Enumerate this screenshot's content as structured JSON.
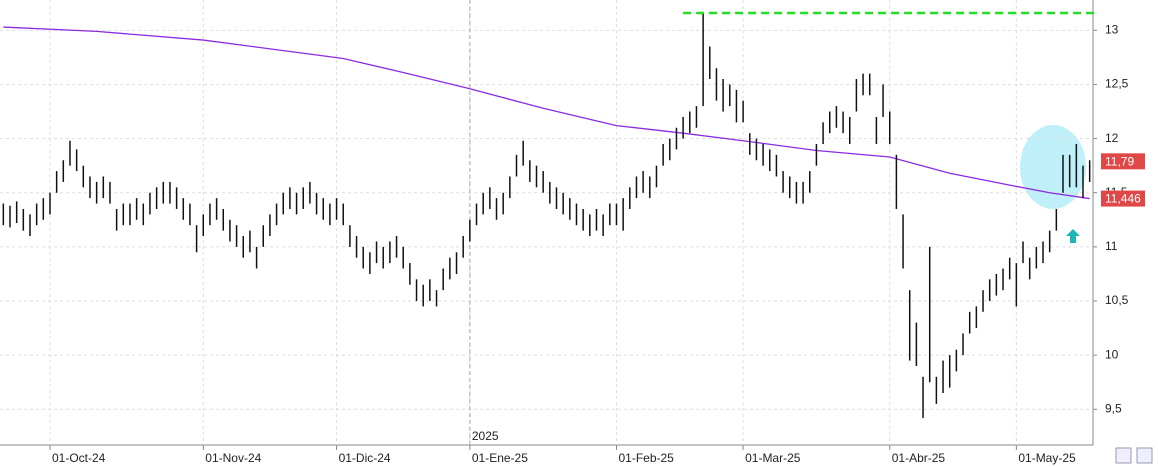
{
  "chart_data": {
    "type": "ohlc",
    "categories": [
      null,
      null,
      null,
      null,
      null,
      null,
      null,
      "01-Oct-24",
      null,
      null,
      null,
      null,
      null,
      null,
      null,
      null,
      null,
      null,
      null,
      null,
      null,
      null,
      null,
      null,
      null,
      null,
      null,
      null,
      null,
      null,
      "01-Nov-24",
      null,
      null,
      null,
      null,
      null,
      null,
      null,
      null,
      null,
      null,
      null,
      null,
      null,
      null,
      null,
      null,
      null,
      null,
      null,
      "01-Dic-24",
      null,
      null,
      null,
      null,
      null,
      null,
      null,
      null,
      null,
      null,
      null,
      null,
      null,
      null,
      null,
      null,
      null,
      null,
      null,
      "01-Ene-25",
      null,
      null,
      null,
      null,
      null,
      null,
      null,
      null,
      null,
      null,
      null,
      null,
      null,
      null,
      null,
      null,
      null,
      null,
      null,
      null,
      null,
      "01-Feb-25",
      null,
      null,
      null,
      null,
      null,
      null,
      null,
      null,
      null,
      null,
      null,
      null,
      null,
      null,
      null,
      null,
      null,
      null,
      "01-Mar-25",
      null,
      null,
      null,
      null,
      null,
      null,
      null,
      null,
      null,
      null,
      null,
      null,
      null,
      null,
      null,
      null,
      null,
      null,
      null,
      null,
      null,
      "01-Abr-25",
      null,
      null,
      null,
      null,
      null,
      null,
      null,
      null,
      null,
      null,
      null,
      null,
      null,
      null,
      null,
      null,
      null,
      null,
      "01-May-25",
      null,
      null,
      null,
      null,
      null,
      null,
      null,
      null,
      null,
      null,
      null
    ],
    "high": [
      11.4,
      11.38,
      11.42,
      11.35,
      11.3,
      11.4,
      11.45,
      11.5,
      11.7,
      11.8,
      11.98,
      11.9,
      11.75,
      11.65,
      11.6,
      11.65,
      11.6,
      11.35,
      11.4,
      11.4,
      11.45,
      11.4,
      11.5,
      11.55,
      11.6,
      11.6,
      11.55,
      11.45,
      11.4,
      11.2,
      11.3,
      11.4,
      11.45,
      11.35,
      11.25,
      11.2,
      11.1,
      11.15,
      11.0,
      11.2,
      11.3,
      11.4,
      11.5,
      11.55,
      11.5,
      11.55,
      11.6,
      11.5,
      11.45,
      11.4,
      11.45,
      11.4,
      11.2,
      11.1,
      11.0,
      10.95,
      11.05,
      11.0,
      11.05,
      11.1,
      11.0,
      10.85,
      10.7,
      10.65,
      10.7,
      10.6,
      10.8,
      10.9,
      10.95,
      11.1,
      11.25,
      11.4,
      11.5,
      11.55,
      11.45,
      11.5,
      11.65,
      11.85,
      11.98,
      11.8,
      11.75,
      11.7,
      11.6,
      11.55,
      11.5,
      11.45,
      11.4,
      11.35,
      11.3,
      11.35,
      11.3,
      11.4,
      11.4,
      11.45,
      11.55,
      11.65,
      11.7,
      11.65,
      11.75,
      11.95,
      12.0,
      12.1,
      12.2,
      12.25,
      12.3,
      13.15,
      12.85,
      12.65,
      12.55,
      12.5,
      12.45,
      12.35,
      12.05,
      12.0,
      11.95,
      11.9,
      11.85,
      11.7,
      11.65,
      11.6,
      11.6,
      11.7,
      11.95,
      12.15,
      12.25,
      12.3,
      12.25,
      12.2,
      12.55,
      12.6,
      12.6,
      12.2,
      12.5,
      12.25,
      11.85,
      11.3,
      10.6,
      10.3,
      9.8,
      11.0,
      9.8,
      9.95,
      10.0,
      10.05,
      10.2,
      10.4,
      10.45,
      10.6,
      10.7,
      10.75,
      10.8,
      10.9,
      10.85,
      11.05,
      10.9,
      11.0,
      11.05,
      11.15,
      11.35,
      11.85,
      11.85,
      11.95,
      11.75,
      11.8
    ],
    "low": [
      11.2,
      11.18,
      11.22,
      11.15,
      11.1,
      11.2,
      11.25,
      11.3,
      11.5,
      11.6,
      11.75,
      11.7,
      11.55,
      11.45,
      11.4,
      11.45,
      11.4,
      11.15,
      11.2,
      11.2,
      11.25,
      11.2,
      11.3,
      11.35,
      11.4,
      11.4,
      11.35,
      11.25,
      11.2,
      10.95,
      11.1,
      11.2,
      11.25,
      11.15,
      11.05,
      11.0,
      10.9,
      10.95,
      10.8,
      11.0,
      11.1,
      11.2,
      11.3,
      11.35,
      11.3,
      11.35,
      11.4,
      11.3,
      11.25,
      11.2,
      11.25,
      11.2,
      11.0,
      10.9,
      10.8,
      10.75,
      10.85,
      10.8,
      10.85,
      10.9,
      10.8,
      10.65,
      10.5,
      10.45,
      10.5,
      10.45,
      10.6,
      10.7,
      10.75,
      10.9,
      11.05,
      11.2,
      11.3,
      11.35,
      11.25,
      11.3,
      11.45,
      11.65,
      11.75,
      11.6,
      11.55,
      11.5,
      11.4,
      11.35,
      11.3,
      11.25,
      11.2,
      11.15,
      11.1,
      11.15,
      11.1,
      11.2,
      11.2,
      11.15,
      11.35,
      11.45,
      11.5,
      11.45,
      11.55,
      11.75,
      11.8,
      11.9,
      12.0,
      12.05,
      12.1,
      12.3,
      12.55,
      12.35,
      12.25,
      12.3,
      12.15,
      12.15,
      11.85,
      11.8,
      11.75,
      11.7,
      11.65,
      11.5,
      11.45,
      11.4,
      11.4,
      11.5,
      11.75,
      11.95,
      12.05,
      12.1,
      12.05,
      11.95,
      12.25,
      12.4,
      12.4,
      11.95,
      12.2,
      11.95,
      11.35,
      10.8,
      9.95,
      9.9,
      9.42,
      9.75,
      9.55,
      9.65,
      9.7,
      9.85,
      10.0,
      10.2,
      10.25,
      10.4,
      10.5,
      10.55,
      10.6,
      10.7,
      10.45,
      10.85,
      10.7,
      10.8,
      10.85,
      10.95,
      11.15,
      11.5,
      11.55,
      11.55,
      11.45,
      11.6
    ],
    "color": "#111111",
    "moving_average": {
      "color": "#8a2be2",
      "x": [
        0,
        14,
        30,
        51,
        60,
        70,
        81,
        92,
        102,
        111,
        122,
        133,
        142,
        151,
        157,
        163
      ],
      "values": [
        13.03,
        12.99,
        12.91,
        12.74,
        12.61,
        12.46,
        12.28,
        12.12,
        12.05,
        11.98,
        11.89,
        11.83,
        11.68,
        11.57,
        11.5,
        11.446
      ]
    },
    "price_labels": [
      {
        "value": 11.79,
        "label": "11,79"
      },
      {
        "value": 11.446,
        "label": "11,446"
      }
    ],
    "resistance": {
      "value": 13.16,
      "color": "#22dd22"
    },
    "year_label": "2025",
    "ylim": [
      9.17,
      13.28
    ],
    "yticks": [
      {
        "value": 9.5,
        "label": "9,5"
      },
      10,
      {
        "value": 10.5,
        "label": "10,5"
      },
      11,
      {
        "value": 11.5,
        "label": "11,5"
      },
      12,
      {
        "value": 12.5,
        "label": "12,5"
      },
      13
    ],
    "grid": true
  }
}
